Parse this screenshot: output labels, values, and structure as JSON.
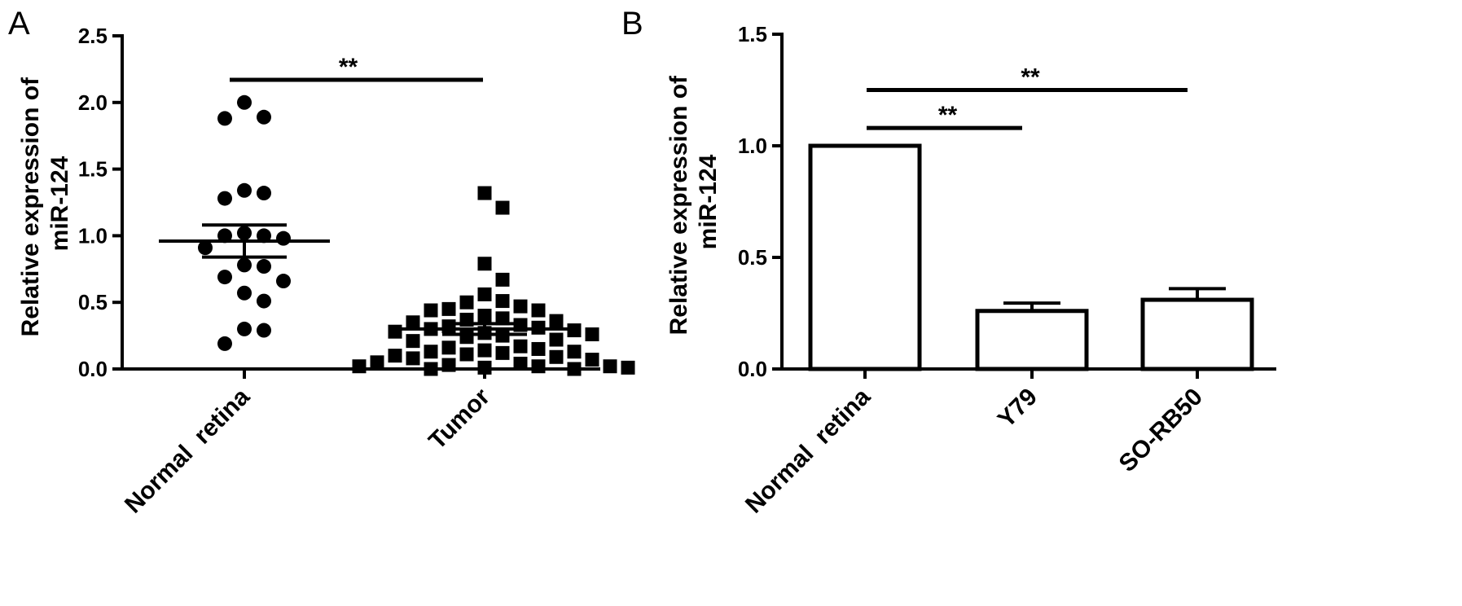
{
  "chart_data": [
    {
      "panel": "A",
      "type": "scatter",
      "ylabel_line1": "Relative expression of",
      "ylabel_line2": "miR-124",
      "categories": [
        "Normal  retina",
        "Tumor"
      ],
      "ylim": [
        0,
        2.5
      ],
      "yticks": [
        "0.0",
        "0.5",
        "1.0",
        "1.5",
        "2.0",
        "2.5"
      ],
      "series": [
        {
          "marker": "circle",
          "values": [
            2.0,
            1.89,
            1.88,
            1.34,
            1.32,
            1.28,
            1.02,
            1.0,
            1.0,
            0.98,
            0.91,
            0.78,
            0.77,
            0.69,
            0.66,
            0.57,
            0.51,
            0.3,
            0.29,
            0.19
          ],
          "mean": 0.96,
          "sem": 0.12
        },
        {
          "marker": "square",
          "values": [
            1.32,
            1.21,
            0.79,
            0.67,
            0.56,
            0.5,
            0.51,
            0.47,
            0.45,
            0.44,
            0.44,
            0.4,
            0.38,
            0.37,
            0.36,
            0.35,
            0.33,
            0.32,
            0.31,
            0.3,
            0.29,
            0.28,
            0.27,
            0.26,
            0.25,
            0.24,
            0.22,
            0.21,
            0.17,
            0.16,
            0.15,
            0.14,
            0.13,
            0.13,
            0.12,
            0.11,
            0.1,
            0.09,
            0.08,
            0.07,
            0.05,
            0.04,
            0.03,
            0.02,
            0.02,
            0.02,
            0.01,
            0.01,
            0.0,
            0.0
          ],
          "mean": 0.3,
          "sem": 0.04
        }
      ],
      "significance": [
        {
          "from": 0,
          "to": 1,
          "y": 2.17,
          "label": "**"
        }
      ]
    },
    {
      "panel": "B",
      "type": "bar",
      "ylabel_line1": "Relative expression of",
      "ylabel_line2": "miR-124",
      "categories": [
        "Normal  retina",
        "Y79",
        "SO-RB50"
      ],
      "values": [
        1.0,
        0.26,
        0.31
      ],
      "errors": [
        0,
        0.035,
        0.05
      ],
      "ylim": [
        0,
        1.5
      ],
      "yticks": [
        "0.0",
        "0.5",
        "1.0",
        "1.5"
      ],
      "significance": [
        {
          "from": 0,
          "to": 1,
          "y": 1.08,
          "label": "**"
        },
        {
          "from": 0,
          "to": 2,
          "y": 1.25,
          "label": "**"
        }
      ]
    }
  ]
}
